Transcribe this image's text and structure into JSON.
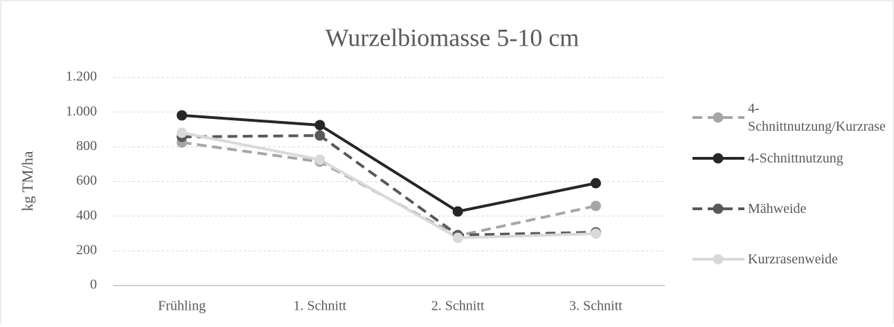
{
  "chart_data": {
    "type": "line",
    "title": "Wurzelbiomasse 5-10 cm",
    "y_label": "kg TM/ha",
    "categories": [
      "Frühling",
      "1. Schnitt",
      "2. Schnitt",
      "3. Schnitt"
    ],
    "series": [
      {
        "name": "4-Schnittnutzung/Kurzrasenweide",
        "color": "#a6a6a6",
        "dash": true,
        "values": [
          825,
          714,
          287,
          459
        ]
      },
      {
        "name": "4-Schnittnutzung",
        "color": "#262626",
        "dash": false,
        "values": [
          981,
          925,
          427,
          590
        ]
      },
      {
        "name": "Mähweide",
        "color": "#595959",
        "dash": true,
        "values": [
          857,
          865,
          291,
          307
        ]
      },
      {
        "name": "Kurzrasenweide",
        "color": "#d9d9d9",
        "dash": false,
        "values": [
          881,
          726,
          275,
          299
        ]
      }
    ],
    "ylim": [
      0,
      1200
    ],
    "yticks": [
      0,
      200,
      400,
      600,
      800,
      {
        "value": 1000,
        "label": "1.000"
      },
      {
        "value": 1200,
        "label": "1.200"
      }
    ],
    "grid": true,
    "legend": "right"
  }
}
